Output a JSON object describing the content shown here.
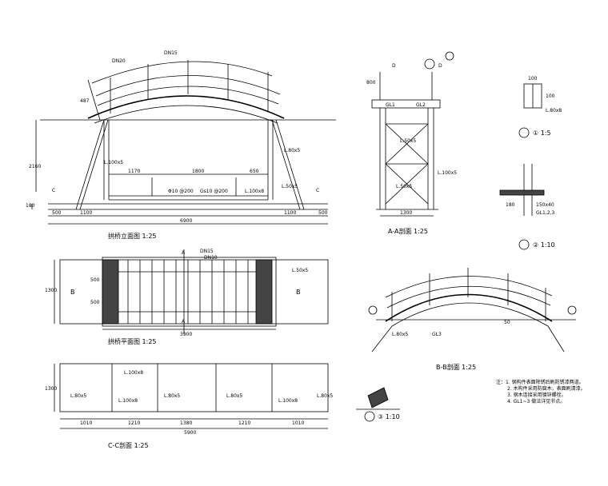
{
  "elevation": {
    "title": "拱桥立面图  1:25",
    "dims": [
      "500",
      "1100",
      "1170",
      "1800",
      "650",
      "1100",
      "500",
      "6900",
      "2160",
      "180",
      "487"
    ],
    "labels": [
      "DN20",
      "DN15",
      "L.100x5",
      "L.80x5",
      "L.50x5",
      "L.100x8",
      "C",
      "C",
      "Gs10 @200",
      "Φ10 @200"
    ]
  },
  "section_aa": {
    "title": "A-A剖面  1:25",
    "dims": [
      "1300",
      "800"
    ],
    "labels": [
      "D",
      "D",
      "GL1",
      "GL2",
      "L.50x5",
      "L.100x5",
      "L.50x5"
    ]
  },
  "plan": {
    "title": "拱桥平面图  1:25",
    "dims": [
      "3900",
      "1300",
      "500",
      "500"
    ],
    "labels": [
      "A",
      "A",
      "B",
      "B",
      "L.50x5",
      "DN15",
      "DN10"
    ]
  },
  "section_bb": {
    "title": "B-B剖面  1:25",
    "labels": [
      "L.80x5",
      "GL3",
      "50"
    ]
  },
  "section_cc": {
    "title": "C-C剖面  1:25",
    "dims": [
      "1010",
      "1210",
      "1380",
      "1210",
      "1010",
      "5900",
      "1300"
    ],
    "labels": [
      "L.100x8",
      "L.80x5",
      "L.100x8",
      "L.80x5",
      "L.80x5",
      "L.100x8",
      "L.80x5"
    ]
  },
  "details": [
    {
      "title": "① 1:5",
      "labels": [
        "100",
        "100",
        "L.80x8"
      ]
    },
    {
      "title": "② 1:10",
      "labels": [
        "180",
        "GL1,2,3",
        "150x40"
      ]
    },
    {
      "title": "③ 1:10"
    }
  ],
  "notes": [
    "注：1. 钢构件表面除锈后刷防锈漆两道。",
    "2. 木构件采用防腐木，表面刷清漆。",
    "3. 钢木连接采用镀锌螺栓。",
    "4. GL1~3 做法详见节点。"
  ]
}
